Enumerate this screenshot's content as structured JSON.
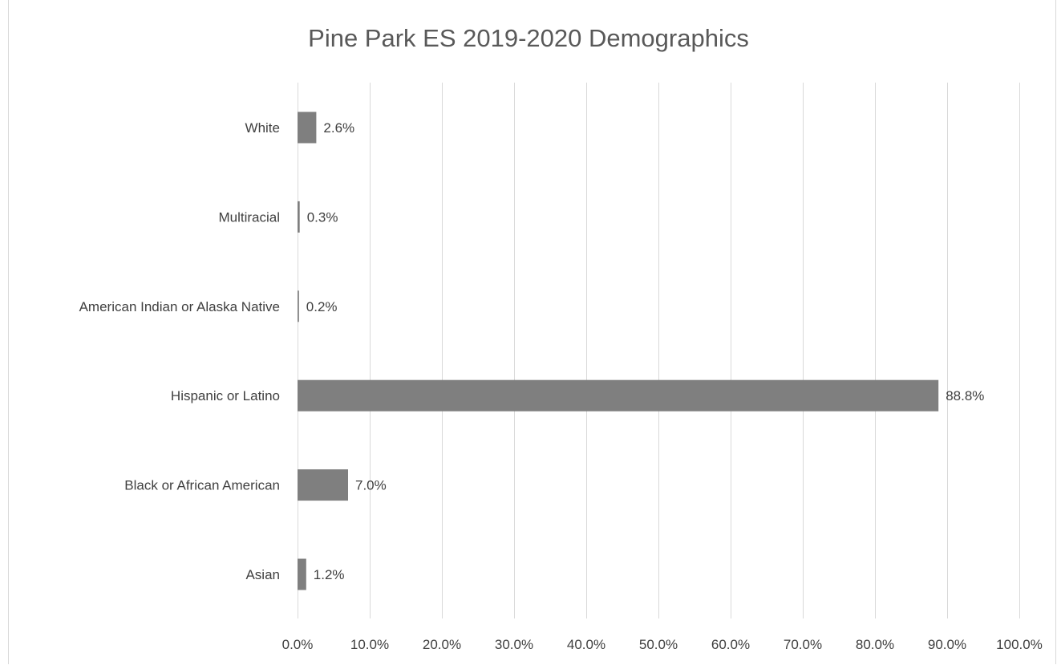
{
  "chart_data": {
    "type": "bar",
    "orientation": "horizontal",
    "title": "Pine Park ES 2019-2020 Demographics",
    "xlabel": "",
    "ylabel": "",
    "categories": [
      "White",
      "Multiracial",
      "American Indian or Alaska Native",
      "Hispanic or Latino",
      "Black or African American",
      "Asian"
    ],
    "values": [
      2.6,
      0.3,
      0.2,
      88.8,
      7.0,
      1.2
    ],
    "data_labels": [
      "2.6%",
      "0.3%",
      "0.2%",
      "88.8%",
      "7.0%",
      "1.2%"
    ],
    "xlim": [
      0,
      100
    ],
    "x_ticks": [
      0,
      10,
      20,
      30,
      40,
      50,
      60,
      70,
      80,
      90,
      100
    ],
    "x_tick_labels": [
      "0.0%",
      "10.0%",
      "20.0%",
      "30.0%",
      "40.0%",
      "50.0%",
      "60.0%",
      "70.0%",
      "80.0%",
      "90.0%",
      "100.0%"
    ],
    "grid": true,
    "legend": "none",
    "colors": {
      "bar": "#7f7f7f",
      "grid": "#d9d9d9",
      "text": "#404040",
      "title": "#595959"
    }
  }
}
